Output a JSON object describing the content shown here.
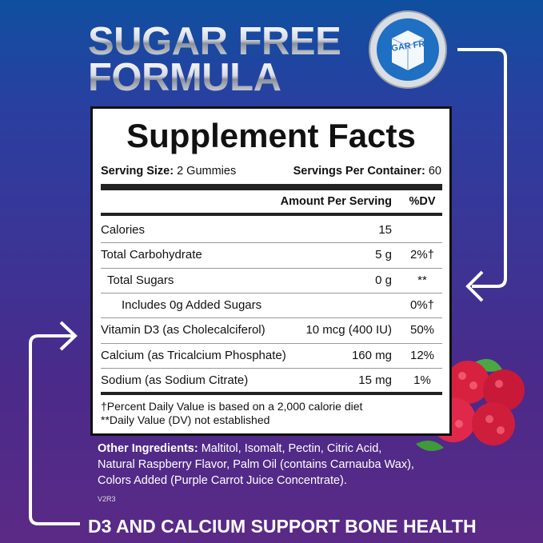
{
  "header": {
    "title_line1": "SUGAR FREE",
    "title_line2": "FORMULA",
    "badge": "SUGAR FREE"
  },
  "facts": {
    "title": "Supplement Facts",
    "serving_size_label": "Serving Size:",
    "serving_size": "2 Gummies",
    "servings_label": "Servings Per Container:",
    "servings": "60",
    "columns": [
      "Amount Per Serving",
      "%DV"
    ],
    "rows": [
      [
        "Calories",
        "15"
      ],
      [
        "Total Carbohydrate",
        "5 g",
        "2%†"
      ],
      [
        "Total Sugars",
        "0 g",
        "**"
      ],
      [
        "Includes 0g Added Sugars",
        "0%†"
      ],
      [
        "Vitamin D3 (as Cholecalciferol)",
        "10 mcg (400 IU)",
        "50%"
      ],
      [
        "Calcium (as Tricalcium Phosphate)",
        "160 mg",
        "12%"
      ],
      [
        "Sodium (as Sodium Citrate)",
        "15 mg",
        "1%"
      ]
    ],
    "footnotes": [
      "†Percent Daily Value is based on a 2,000 calorie diet",
      "**Daily Value (DV) not established"
    ]
  },
  "ingredients": {
    "label": "Other Ingredients:",
    "lines": [
      "Maltitol, Isomalt, Pectin, Citric Acid,",
      "Natural Raspberry Flavor, Palm Oil (contains Carnauba Wax),",
      "Colors Added (Purple Carrot Juice Concentrate)."
    ]
  },
  "code": "V2R3",
  "footer": "D3 AND CALCIUM SUPPORT BONE HEALTH"
}
